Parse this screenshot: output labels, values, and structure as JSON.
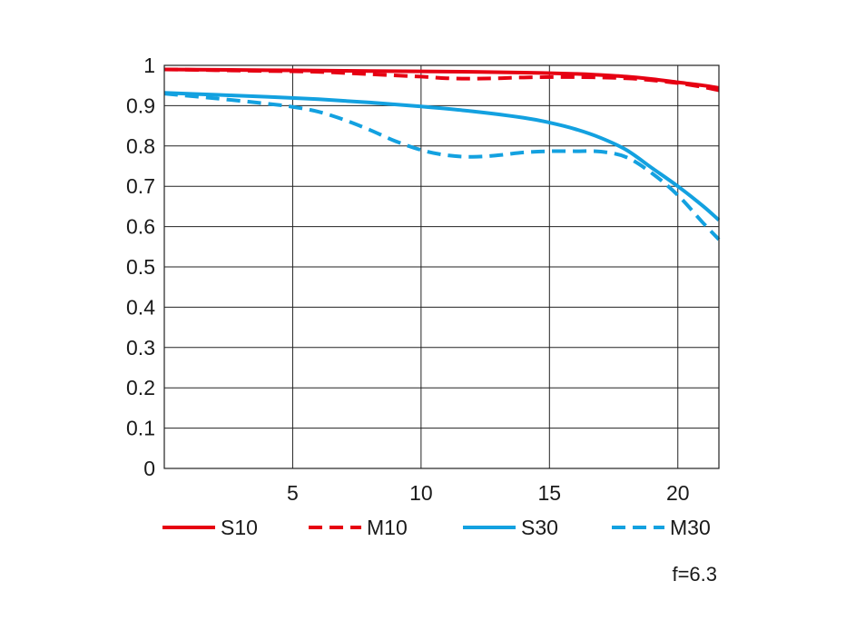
{
  "chart_data": {
    "type": "line",
    "title": "",
    "xlabel": "",
    "ylabel": "",
    "xlim": [
      0,
      21.6
    ],
    "ylim": [
      0,
      1
    ],
    "xticks": [
      "5",
      "10",
      "15",
      "20"
    ],
    "xtick_values": [
      5,
      10,
      15,
      20
    ],
    "yticks": [
      "0",
      "0.1",
      "0.2",
      "0.3",
      "0.4",
      "0.5",
      "0.6",
      "0.7",
      "0.8",
      "0.9",
      "1"
    ],
    "ytick_values": [
      0,
      0.1,
      0.2,
      0.3,
      0.4,
      0.5,
      0.6,
      0.7,
      0.8,
      0.9,
      1
    ],
    "grid": true,
    "legend_position": "bottom",
    "annotation": "f=6.3",
    "series": [
      {
        "name": "S10",
        "color": "#e60012",
        "dash": "solid",
        "x": [
          0,
          2,
          4,
          6,
          8,
          10,
          12,
          14,
          16,
          17,
          18,
          19,
          20,
          21,
          21.6
        ],
        "y": [
          0.99,
          0.989,
          0.988,
          0.987,
          0.986,
          0.985,
          0.984,
          0.982,
          0.979,
          0.976,
          0.972,
          0.966,
          0.958,
          0.95,
          0.944
        ]
      },
      {
        "name": "M10",
        "color": "#e60012",
        "dash": "dashed",
        "x": [
          0,
          2,
          4,
          6,
          8,
          10,
          11,
          12,
          13,
          14,
          16,
          18,
          19,
          20,
          21,
          21.6
        ],
        "y": [
          0.99,
          0.988,
          0.986,
          0.984,
          0.978,
          0.972,
          0.968,
          0.967,
          0.968,
          0.97,
          0.971,
          0.968,
          0.963,
          0.956,
          0.946,
          0.938
        ]
      },
      {
        "name": "S30",
        "color": "#13a1e0",
        "dash": "solid",
        "x": [
          0,
          2,
          4,
          6,
          8,
          10,
          12,
          14,
          15,
          16,
          17,
          18,
          19,
          20,
          21,
          21.6
        ],
        "y": [
          0.932,
          0.927,
          0.922,
          0.916,
          0.908,
          0.898,
          0.886,
          0.87,
          0.858,
          0.842,
          0.82,
          0.79,
          0.745,
          0.7,
          0.65,
          0.616
        ]
      },
      {
        "name": "M30",
        "color": "#13a1e0",
        "dash": "dashed",
        "x": [
          0,
          2,
          4,
          5,
          6,
          7,
          8,
          9,
          10,
          11,
          12,
          13,
          14,
          15,
          16,
          17,
          18,
          19,
          20,
          21,
          21.6
        ],
        "y": [
          0.93,
          0.918,
          0.905,
          0.897,
          0.885,
          0.865,
          0.84,
          0.812,
          0.79,
          0.777,
          0.773,
          0.777,
          0.784,
          0.787,
          0.787,
          0.786,
          0.772,
          0.732,
          0.678,
          0.608,
          0.568
        ]
      }
    ]
  }
}
